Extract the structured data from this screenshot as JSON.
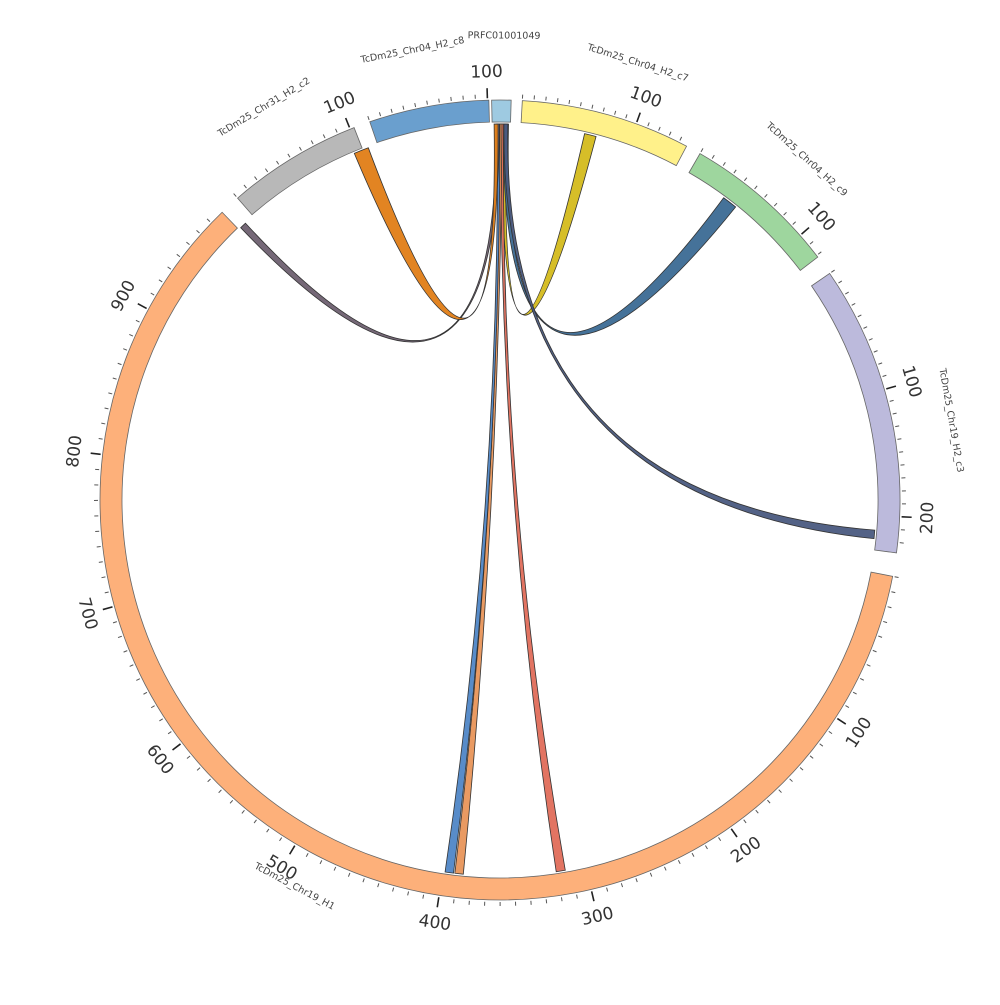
{
  "chart_data": {
    "type": "chord",
    "segments": [
      {
        "id": "PRFC01001049",
        "label": "PRFC01001049",
        "color": "#9ecae1",
        "ticks": []
      },
      {
        "id": "c7",
        "label": "TcDm25_Chr04_H2_c7",
        "color": "#fff18a",
        "ticks": [
          {
            "value": 100,
            "label": "100"
          }
        ]
      },
      {
        "id": "c9",
        "label": "TcDm25_Chr04_H2_c9",
        "color": "#9ed69e",
        "ticks": [
          {
            "value": 100,
            "label": "100"
          }
        ]
      },
      {
        "id": "c3",
        "label": "TcDm25_Chr19_H2_c3",
        "color": "#bcbadc",
        "ticks": [
          {
            "value": 100,
            "label": "100"
          },
          {
            "value": 200,
            "label": "200"
          }
        ]
      },
      {
        "id": "H1",
        "label": "TcDm25_Chr19_H1",
        "color": "#fdb07a",
        "ticks": [
          {
            "value": 100,
            "label": "100"
          },
          {
            "value": 200,
            "label": "200"
          },
          {
            "value": 300,
            "label": "300"
          },
          {
            "value": 400,
            "label": "400"
          },
          {
            "value": 500,
            "label": "500"
          },
          {
            "value": 600,
            "label": "600"
          },
          {
            "value": 700,
            "label": "700"
          },
          {
            "value": 800,
            "label": "800"
          },
          {
            "value": 900,
            "label": "900"
          }
        ]
      },
      {
        "id": "c2",
        "label": "TcDm25_Chr31_H2_c2",
        "color": "#b8b8b8",
        "ticks": [
          {
            "value": 100,
            "label": "100"
          }
        ]
      },
      {
        "id": "c8",
        "label": "TcDm25_Chr04_H2_c8",
        "color": "#6a9fce",
        "ticks": [
          {
            "value": 100,
            "label": "100"
          }
        ]
      }
    ],
    "links": [
      {
        "source": "PRFC01001049",
        "target": "c7",
        "color": "#d4bb1c"
      },
      {
        "source": "PRFC01001049",
        "target": "c9",
        "color": "#3b6a93"
      },
      {
        "source": "PRFC01001049",
        "target": "c3",
        "color": "#4a5a80"
      },
      {
        "source": "PRFC01001049",
        "target": "H1",
        "color": "#e06d5a"
      },
      {
        "source": "PRFC01001049",
        "target": "H1",
        "color": "#e8955a"
      },
      {
        "source": "PRFC01001049",
        "target": "H1",
        "color": "#4f86c6"
      },
      {
        "source": "PRFC01001049",
        "target": "c2",
        "color": "#6e6070"
      },
      {
        "source": "PRFC01001049",
        "target": "c8",
        "color": "#e07d16"
      }
    ]
  }
}
